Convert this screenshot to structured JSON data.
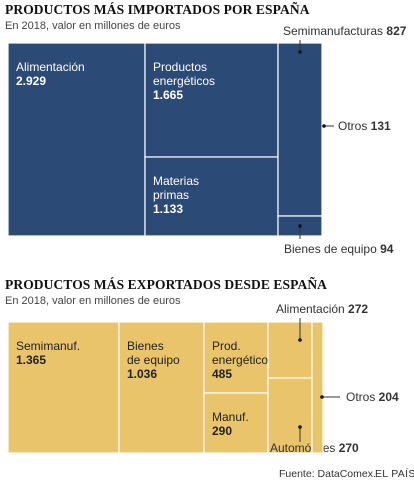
{
  "chart_data": [
    {
      "type": "treemap",
      "title": "PRODUCTOS MÁS IMPORTADOS POR ESPAÑA",
      "subtitle": "En 2018, valor en millones de euros",
      "color": "#2b4a75",
      "label_color": "#ffffff",
      "items": [
        {
          "name": "Alimentación",
          "value": 2929,
          "value_label": "2.929"
        },
        {
          "name": "Productos energéticos",
          "lines": [
            "Productos",
            "energéticos"
          ],
          "value": 1665,
          "value_label": "1.665"
        },
        {
          "name": "Materias primas",
          "lines": [
            "Materias",
            "primas"
          ],
          "value": 1133,
          "value_label": "1.133"
        },
        {
          "name": "Semimanufacturas",
          "value": 827,
          "value_label": "827"
        },
        {
          "name": "Bienes de equipo",
          "value": 94,
          "value_label": "94"
        },
        {
          "name": "Otros",
          "value": 131,
          "value_label": "131"
        }
      ]
    },
    {
      "type": "treemap",
      "title": "PRODUCTOS MÁS EXPORTADOS DESDE ESPAÑA",
      "subtitle": "En 2018, valor en millones de euros",
      "color": "#e9c46a",
      "label_color": "#222222",
      "items": [
        {
          "name": "Semimanuf.",
          "value": 1365,
          "value_label": "1.365"
        },
        {
          "name": "Bienes de equipo",
          "lines": [
            "Bienes",
            "de equipo"
          ],
          "value": 1036,
          "value_label": "1.036"
        },
        {
          "name": "Prod. energéticos",
          "lines": [
            "Prod.",
            "energéticos"
          ],
          "value": 485,
          "value_label": "485"
        },
        {
          "name": "Manuf.",
          "value": 290,
          "value_label": "290"
        },
        {
          "name": "Alimentación",
          "value": 272,
          "value_label": "272"
        },
        {
          "name": "Automóviles",
          "value": 270,
          "value_label": "270"
        },
        {
          "name": "Otros",
          "value": 204,
          "value_label": "204"
        }
      ]
    }
  ],
  "footer": {
    "source": "Fuente: DataComex.",
    "brand": "EL PAÍS"
  }
}
